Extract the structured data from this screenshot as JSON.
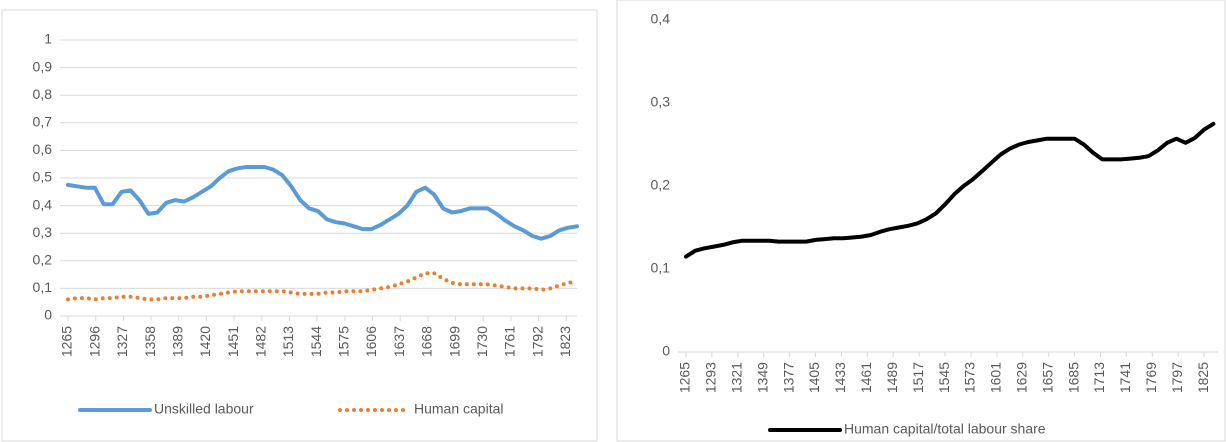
{
  "chart_data": [
    {
      "type": "line",
      "grid": true,
      "x": [
        1265,
        1275,
        1285,
        1295,
        1305,
        1315,
        1325,
        1335,
        1345,
        1355,
        1365,
        1375,
        1385,
        1395,
        1405,
        1415,
        1425,
        1435,
        1445,
        1455,
        1465,
        1475,
        1485,
        1495,
        1505,
        1515,
        1525,
        1535,
        1545,
        1555,
        1565,
        1575,
        1585,
        1595,
        1605,
        1615,
        1625,
        1635,
        1645,
        1655,
        1665,
        1675,
        1685,
        1695,
        1705,
        1715,
        1725,
        1735,
        1745,
        1755,
        1765,
        1775,
        1785,
        1795,
        1805,
        1815,
        1825,
        1835
      ],
      "xlim": [
        1265,
        1835
      ],
      "xticks": [
        1265,
        1296,
        1327,
        1358,
        1389,
        1420,
        1451,
        1482,
        1513,
        1544,
        1575,
        1606,
        1637,
        1668,
        1699,
        1730,
        1761,
        1792,
        1823
      ],
      "ylim": [
        0,
        1
      ],
      "yticks": [
        0,
        {
          "value": 0.1,
          "label": "0,1"
        },
        {
          "value": 0.2,
          "label": "0,2"
        },
        {
          "value": 0.3,
          "label": "0,3"
        },
        {
          "value": 0.4,
          "label": "0,4"
        },
        {
          "value": 0.5,
          "label": "0,5"
        },
        {
          "value": 0.6,
          "label": "0,6"
        },
        {
          "value": 0.7,
          "label": "0,7"
        },
        {
          "value": 0.8,
          "label": "0,8"
        },
        {
          "value": 0.9,
          "label": "0,9"
        },
        1
      ],
      "series": [
        {
          "name": "Unskilled labour",
          "color": "#5b9bd5",
          "style": "solid",
          "values": [
            0.475,
            0.47,
            0.465,
            0.465,
            0.405,
            0.405,
            0.45,
            0.455,
            0.42,
            0.37,
            0.375,
            0.41,
            0.42,
            0.415,
            0.43,
            0.45,
            0.47,
            0.5,
            0.525,
            0.535,
            0.54,
            0.54,
            0.54,
            0.53,
            0.51,
            0.47,
            0.42,
            0.39,
            0.38,
            0.35,
            0.34,
            0.335,
            0.325,
            0.315,
            0.315,
            0.33,
            0.35,
            0.37,
            0.4,
            0.45,
            0.465,
            0.44,
            0.39,
            0.375,
            0.38,
            0.39,
            0.39,
            0.39,
            0.37,
            0.345,
            0.325,
            0.31,
            0.29,
            0.28,
            0.29,
            0.31,
            0.32,
            0.325
          ]
        },
        {
          "name": "Human capital",
          "color": "#ed7d31",
          "style": "dotted",
          "values": [
            0.06,
            0.065,
            0.065,
            0.06,
            0.065,
            0.065,
            0.07,
            0.07,
            0.065,
            0.06,
            0.06,
            0.065,
            0.065,
            0.065,
            0.07,
            0.07,
            0.075,
            0.08,
            0.085,
            0.09,
            0.09,
            0.09,
            0.09,
            0.09,
            0.09,
            0.085,
            0.08,
            0.08,
            0.08,
            0.085,
            0.085,
            0.09,
            0.09,
            0.09,
            0.095,
            0.1,
            0.105,
            0.115,
            0.125,
            0.14,
            0.155,
            0.155,
            0.135,
            0.12,
            0.115,
            0.115,
            0.115,
            0.115,
            0.11,
            0.105,
            0.1,
            0.1,
            0.1,
            0.095,
            0.1,
            0.11,
            0.12,
            0.125
          ]
        }
      ]
    },
    {
      "type": "line",
      "grid": false,
      "x": [
        1265,
        1275,
        1285,
        1295,
        1305,
        1315,
        1325,
        1335,
        1345,
        1355,
        1365,
        1375,
        1385,
        1395,
        1405,
        1415,
        1425,
        1435,
        1445,
        1455,
        1465,
        1475,
        1485,
        1495,
        1505,
        1515,
        1525,
        1535,
        1545,
        1555,
        1565,
        1575,
        1585,
        1595,
        1605,
        1615,
        1625,
        1635,
        1645,
        1655,
        1665,
        1675,
        1685,
        1695,
        1705,
        1715,
        1725,
        1735,
        1745,
        1755,
        1765,
        1775,
        1785,
        1795,
        1805,
        1815,
        1825,
        1835
      ],
      "xlim": [
        1265,
        1840
      ],
      "xticks": [
        1265,
        1293,
        1321,
        1349,
        1377,
        1405,
        1433,
        1461,
        1489,
        1517,
        1545,
        1573,
        1601,
        1629,
        1657,
        1685,
        1713,
        1741,
        1769,
        1797,
        1825
      ],
      "ylim": [
        0,
        0.4
      ],
      "yticks": [
        0,
        {
          "value": 0.1,
          "label": "0,1"
        },
        {
          "value": 0.2,
          "label": "0,2"
        },
        {
          "value": 0.3,
          "label": "0,3"
        },
        {
          "value": 0.4,
          "label": "0,4"
        }
      ],
      "series": [
        {
          "name": "Human capital/total labour share",
          "color": "#000000",
          "style": "solid",
          "values": [
            0.115,
            0.122,
            0.125,
            0.127,
            0.129,
            0.132,
            0.134,
            0.134,
            0.134,
            0.134,
            0.133,
            0.133,
            0.133,
            0.133,
            0.135,
            0.136,
            0.137,
            0.137,
            0.138,
            0.139,
            0.141,
            0.145,
            0.148,
            0.15,
            0.152,
            0.155,
            0.16,
            0.167,
            0.178,
            0.19,
            0.2,
            0.208,
            0.218,
            0.228,
            0.238,
            0.245,
            0.25,
            0.253,
            0.255,
            0.257,
            0.257,
            0.257,
            0.257,
            0.25,
            0.24,
            0.232,
            0.232,
            0.232,
            0.233,
            0.234,
            0.236,
            0.243,
            0.252,
            0.257,
            0.252,
            0.258,
            0.268,
            0.275
          ]
        }
      ]
    }
  ]
}
